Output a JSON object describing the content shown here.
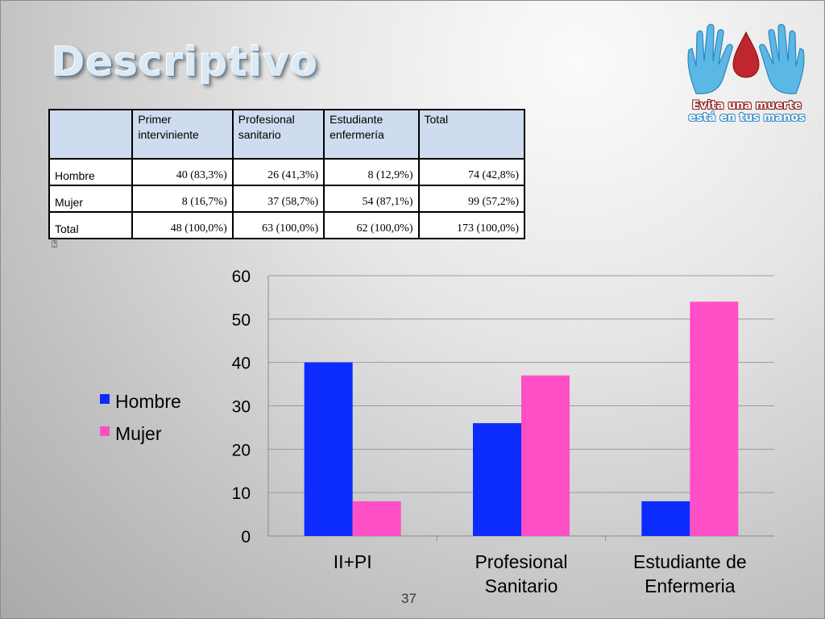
{
  "slide": {
    "title": "Descriptivo",
    "page_number": "37",
    "table_note": "⍰"
  },
  "logo": {
    "line1": "Evita una muerte",
    "line2": "está en tus manos",
    "colors": {
      "hands": "#5bb7e6",
      "drop": "#c0262d"
    }
  },
  "table": {
    "columns": [
      "",
      "Primer interviniente",
      "Profesional sanitario",
      "Estudiante enfermería",
      "Total"
    ],
    "rows": [
      {
        "label": "Hombre",
        "cells": [
          "40 (83,3%)",
          "26 (41,3%)",
          "8 (12,9%)",
          "74 (42,8%)"
        ]
      },
      {
        "label": "Mujer",
        "cells": [
          "8 (16,7%)",
          "37 (58,7%)",
          "54 (87,1%)",
          "99 (57,2%)"
        ]
      },
      {
        "label": "Total",
        "cells": [
          "48 (100,0%)",
          "63 (100,0%)",
          "62 (100,0%)",
          "173 (100,0%)"
        ]
      }
    ]
  },
  "chart_data": {
    "type": "bar",
    "categories": [
      "II+PI",
      "Profesional Sanitario",
      "Estudiante de Enfermeria"
    ],
    "series": [
      {
        "name": "Hombre",
        "values": [
          40,
          26,
          8
        ],
        "color": "#0b2bff"
      },
      {
        "name": "Mujer",
        "values": [
          8,
          37,
          54
        ],
        "color": "#ff4fc6"
      }
    ],
    "ylim": [
      0,
      60
    ],
    "yticks": [
      0,
      10,
      20,
      30,
      40,
      50,
      60
    ],
    "grid": true,
    "legend": "left"
  }
}
